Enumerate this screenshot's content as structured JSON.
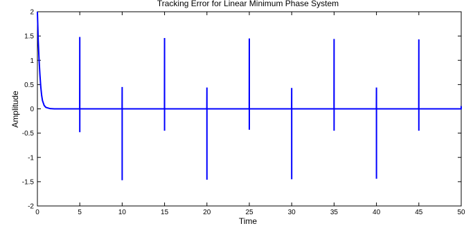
{
  "chart_data": {
    "type": "line",
    "title": "Tracking Error for Linear Minimum Phase System",
    "xlabel": "Time",
    "ylabel": "Amplitude",
    "xlim": [
      0,
      50
    ],
    "ylim": [
      -2,
      2
    ],
    "xticks": [
      0,
      5,
      10,
      15,
      20,
      25,
      30,
      35,
      40,
      45,
      50
    ],
    "yticks": [
      2,
      1.5,
      1,
      0.5,
      0,
      -0.5,
      -1,
      -1.5,
      -2
    ],
    "xtick_labels": [
      "0",
      "5",
      "10",
      "15",
      "20",
      "25",
      "30",
      "35",
      "40",
      "45",
      "50"
    ],
    "ytick_labels": [
      "2",
      "1.5",
      "1",
      "0.5",
      "0",
      "-0.5",
      "-1",
      "-1.5",
      "-2"
    ],
    "grid": false,
    "series": [
      {
        "color": "#0000ff",
        "x": [
          0,
          0.05,
          0.1,
          0.2,
          0.3,
          0.4,
          0.5,
          0.6,
          0.8,
          1.0,
          1.5,
          2,
          4.99,
          5,
          5.001,
          5.002,
          5.01,
          9.99,
          10,
          10.001,
          10.002,
          10.01,
          14.99,
          15,
          15.001,
          15.002,
          15.01,
          19.99,
          20,
          20.001,
          20.002,
          20.01,
          24.99,
          25,
          25.001,
          25.002,
          25.01,
          29.99,
          30,
          30.001,
          30.002,
          30.01,
          34.99,
          35,
          35.001,
          35.002,
          35.01,
          39.99,
          40,
          40.001,
          40.002,
          40.01,
          44.99,
          45,
          45.001,
          45.002,
          45.01,
          49.99,
          50,
          50.001,
          50.002
        ],
        "y": [
          2.0,
          1.7,
          1.4,
          1.0,
          0.7,
          0.45,
          0.28,
          0.17,
          0.07,
          0.03,
          0.005,
          0,
          0,
          1.48,
          -0.48,
          0,
          0,
          0,
          0.45,
          -1.47,
          0,
          0,
          0,
          1.46,
          -0.45,
          0,
          0,
          0,
          0.44,
          -1.46,
          0,
          0,
          0,
          1.45,
          -0.43,
          0,
          0,
          0,
          0.43,
          -1.45,
          0,
          0,
          0,
          1.44,
          -0.45,
          0,
          0,
          0,
          0.44,
          -1.44,
          0,
          0,
          0,
          1.43,
          -0.45,
          0,
          0,
          0,
          0.05,
          0.05,
          0.05
        ]
      }
    ]
  }
}
